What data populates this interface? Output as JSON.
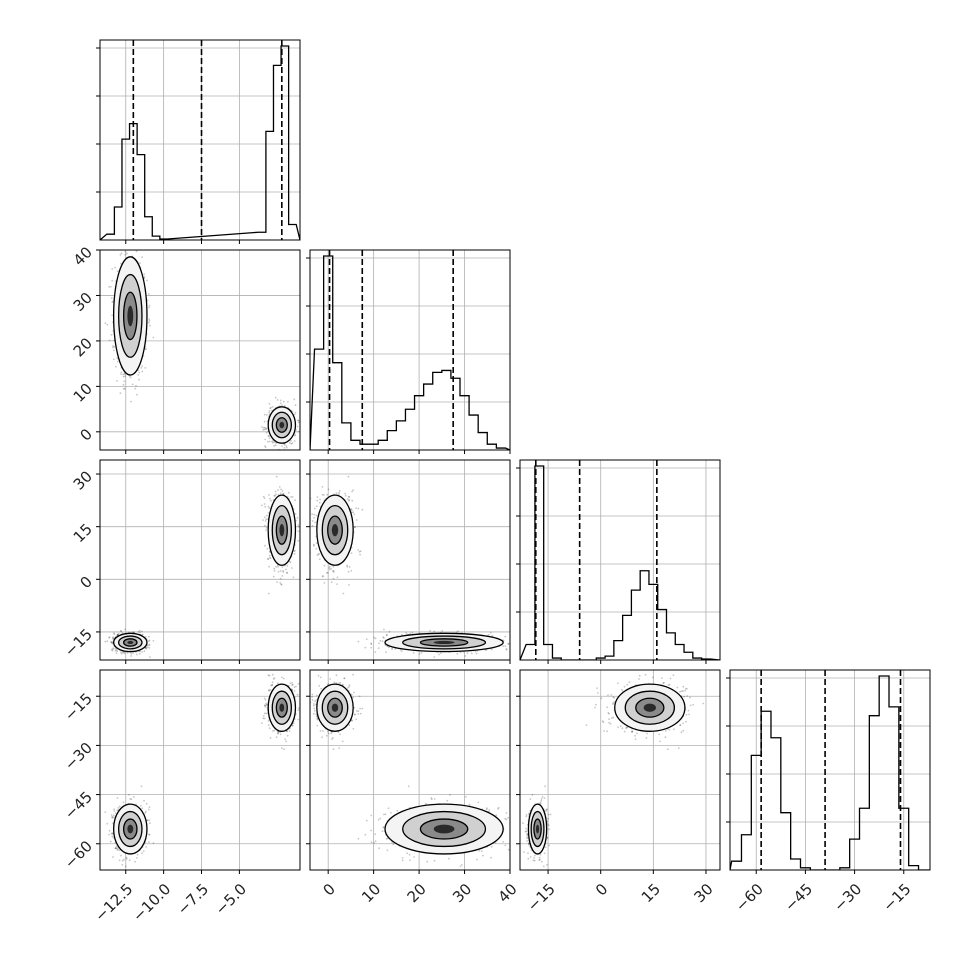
{
  "chart_data": {
    "type": "corner",
    "grid": true,
    "quantile_line_style": "dashed",
    "parameters": [
      {
        "range": [
          -14.2,
          -1.0
        ],
        "ticks": [
          -12.5,
          -10.0,
          -7.5,
          -5.0
        ],
        "tick_labels": [
          "−12.5",
          "−10.0",
          "−7.5",
          "−5.0"
        ],
        "quantiles": [
          -12.0,
          -7.5,
          -2.2
        ]
      },
      {
        "range": [
          -4,
          40
        ],
        "ticks": [
          0,
          10,
          20,
          30,
          40
        ],
        "tick_labels": [
          "0",
          "10",
          "20",
          "30",
          "40"
        ],
        "quantiles": [
          0.3,
          7.5,
          27.5
        ]
      },
      {
        "range": [
          -23,
          34
        ],
        "ticks": [
          -15,
          0,
          15,
          30
        ],
        "tick_labels": [
          "−15",
          "0",
          "15",
          "30"
        ],
        "quantiles": [
          -18.5,
          -6.0,
          16.0
        ]
      },
      {
        "range": [
          -68,
          -7
        ],
        "ticks": [
          -60,
          -45,
          -30,
          -15
        ],
        "tick_labels": [
          "−60",
          "−45",
          "−30",
          "−15"
        ],
        "quantiles": [
          -58.5,
          -39.0,
          -16.0
        ]
      }
    ],
    "histograms": [
      {
        "x": [
          -13.5,
          -13.0,
          -12.5,
          -12.0,
          -11.5,
          -11.0,
          -10.5,
          -10.0,
          -3.5,
          -3.0,
          -2.5,
          -2.0,
          -1.5
        ],
        "values": [
          0.03,
          0.17,
          0.52,
          0.6,
          0.44,
          0.12,
          0.02,
          0.005,
          0.04,
          0.56,
          0.9,
          1.0,
          0.08
        ]
      },
      {
        "x": [
          -2,
          0,
          2,
          4,
          6,
          8,
          10,
          12,
          14,
          16,
          18,
          20,
          22,
          24,
          26,
          28,
          30,
          32,
          34,
          36,
          38
        ],
        "values": [
          0.52,
          1.0,
          0.45,
          0.14,
          0.05,
          0.03,
          0.03,
          0.05,
          0.1,
          0.15,
          0.21,
          0.28,
          0.34,
          0.4,
          0.41,
          0.37,
          0.28,
          0.18,
          0.09,
          0.03,
          0.01
        ]
      },
      {
        "x": [
          -20,
          -17.5,
          -15,
          -12.5,
          -10,
          -7.5,
          -5,
          -2.5,
          0,
          2.5,
          5,
          7.5,
          10,
          12.5,
          15,
          17.5,
          20,
          22.5,
          25,
          27.5,
          30
        ],
        "values": [
          0.08,
          1.0,
          0.08,
          0.01,
          0,
          0,
          0,
          0,
          0.01,
          0.02,
          0.1,
          0.23,
          0.36,
          0.46,
          0.39,
          0.26,
          0.14,
          0.08,
          0.04,
          0.01,
          0.005
        ]
      },
      {
        "x": [
          -66,
          -63,
          -60,
          -57,
          -54,
          -51,
          -48,
          -45,
          -42,
          -39,
          -36,
          -33,
          -30,
          -27,
          -24,
          -21,
          -18,
          -15,
          -12,
          -9
        ],
        "values": [
          0.04,
          0.16,
          0.52,
          0.72,
          0.6,
          0.26,
          0.05,
          0.01,
          0,
          0,
          0,
          0.01,
          0.14,
          0.28,
          0.7,
          0.88,
          0.74,
          0.28,
          0.02,
          0
        ]
      }
    ],
    "clusters": [
      {
        "mean": [
          -12.2,
          25.5,
          -18.0,
          -55.5
        ],
        "sd": [
          0.55,
          6.5,
          1.3,
          3.8
        ]
      },
      {
        "mean": [
          -2.2,
          1.5,
          14.0,
          -18.5
        ],
        "sd": [
          0.45,
          2.0,
          5.0,
          3.6
        ]
      }
    ]
  }
}
